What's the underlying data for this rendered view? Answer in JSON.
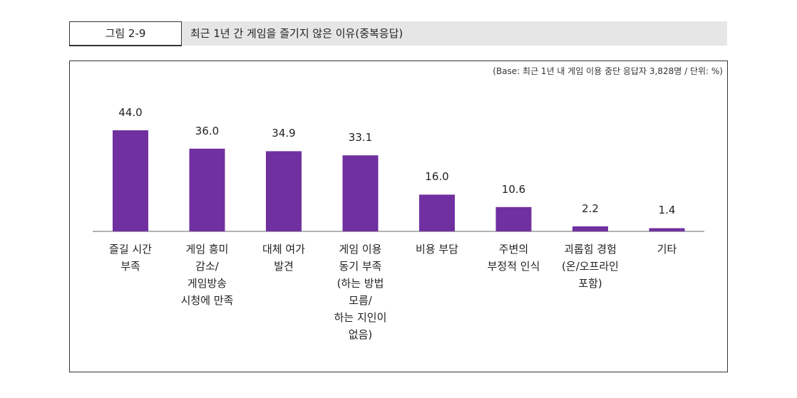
{
  "figure_label": "그림 2-9",
  "chart_data": {
    "type": "bar",
    "title": "최근 1년 간 게임을 즐기지 않은 이유(중복응답)",
    "note": "(Base: 최근 1년 내 게임 이용 중단 응답자 3,828명 / 단위: %)",
    "categories": [
      "즐길 시간\n부족",
      "게임 흥미\n감소/\n게임방송\n시청에 만족",
      "대체 여가\n발견",
      "게임 이용\n동기 부족\n(하는 방법\n모름/\n하는 지인이\n없음)",
      "비용 부담",
      "주변의\n부정적 인식",
      "괴롭힘 경험\n(온/오프라인\n포함)",
      "기타"
    ],
    "values": [
      44,
      36,
      34.9,
      33.1,
      16,
      10.6,
      2.2,
      1.4
    ],
    "value_labels": [
      "44.0",
      "36.0",
      "34.9",
      "33.1",
      "16.0",
      "10.6",
      "2.2",
      "1.4"
    ],
    "color": "#7030a0"
  }
}
